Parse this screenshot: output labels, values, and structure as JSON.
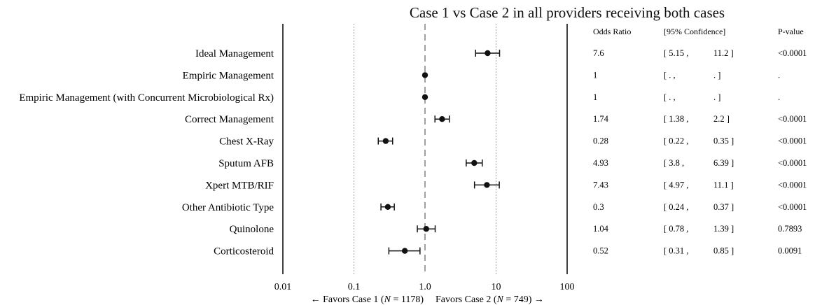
{
  "chart_data": {
    "type": "forest",
    "title": "Case 1 vs Case 2 in all providers receiving both cases",
    "x_scale": "log",
    "xlim": [
      0.01,
      100
    ],
    "x_ticks": [
      "0.01",
      "0.1",
      "1.0",
      "10",
      "100"
    ],
    "x_tick_values": [
      0.01,
      0.1,
      1,
      10,
      100
    ],
    "reference_line": 1,
    "footer_left": "← Favors Case 1 (",
    "footer_left_n": "N",
    "footer_left_val": " = 1178)",
    "footer_right": "Favors Case 2 (",
    "footer_right_n": "N",
    "footer_right_val": " = 749) →",
    "table_headers": {
      "or": "Odds Ratio",
      "ci": "[95% Confidence]",
      "p": "P-value"
    },
    "rows": [
      {
        "label": "Ideal Management",
        "or": 7.6,
        "lo": 5.15,
        "hi": 11.2,
        "or_text": "7.6",
        "lo_text": "[ 5.15 ,",
        "hi_text": "11.2 ]",
        "p": "<0.0001"
      },
      {
        "label": "Empiric Management",
        "or": 1,
        "lo": null,
        "hi": null,
        "or_text": "1",
        "lo_text": "[ . ,",
        "hi_text": ". ]",
        "p": "."
      },
      {
        "label": "Empiric Management (with Concurrent Microbiological Rx)",
        "or": 1,
        "lo": null,
        "hi": null,
        "or_text": "1",
        "lo_text": "[ . ,",
        "hi_text": ". ]",
        "p": "."
      },
      {
        "label": "Correct Management",
        "or": 1.74,
        "lo": 1.38,
        "hi": 2.2,
        "or_text": "1.74",
        "lo_text": "[ 1.38 ,",
        "hi_text": "2.2 ]",
        "p": "<0.0001"
      },
      {
        "label": "Chest X-Ray",
        "or": 0.28,
        "lo": 0.22,
        "hi": 0.35,
        "or_text": "0.28",
        "lo_text": "[ 0.22 ,",
        "hi_text": "0.35 ]",
        "p": "<0.0001"
      },
      {
        "label": "Sputum AFB",
        "or": 4.93,
        "lo": 3.8,
        "hi": 6.39,
        "or_text": "4.93",
        "lo_text": "[ 3.8 ,",
        "hi_text": "6.39 ]",
        "p": "<0.0001"
      },
      {
        "label": "Xpert MTB/RIF",
        "or": 7.43,
        "lo": 4.97,
        "hi": 11.1,
        "or_text": "7.43",
        "lo_text": "[ 4.97 ,",
        "hi_text": "11.1 ]",
        "p": "<0.0001"
      },
      {
        "label": "Other Antibiotic Type",
        "or": 0.3,
        "lo": 0.24,
        "hi": 0.37,
        "or_text": "0.3",
        "lo_text": "[ 0.24 ,",
        "hi_text": "0.37 ]",
        "p": "<0.0001"
      },
      {
        "label": "Quinolone",
        "or": 1.04,
        "lo": 0.78,
        "hi": 1.39,
        "or_text": "1.04",
        "lo_text": "[ 0.78 ,",
        "hi_text": "1.39 ]",
        "p": "0.7893"
      },
      {
        "label": "Corticosteroid",
        "or": 0.52,
        "lo": 0.31,
        "hi": 0.85,
        "or_text": "0.52",
        "lo_text": "[ 0.31 ,",
        "hi_text": "0.85 ]",
        "p": "0.0091"
      }
    ]
  }
}
